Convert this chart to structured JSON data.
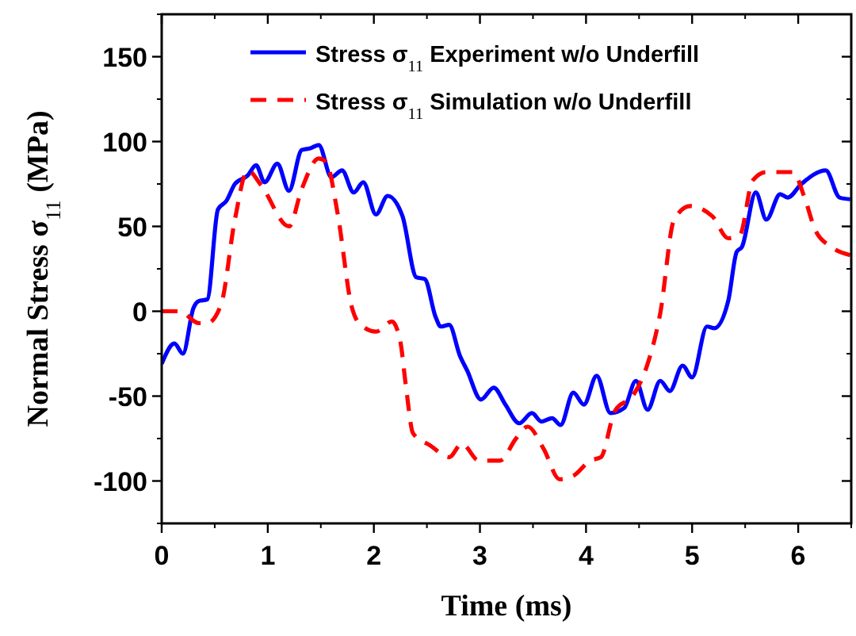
{
  "chart_data": {
    "type": "line",
    "xlabel": "Time (ms)",
    "ylabel": "Normal Stress σ$_{11}$ (MPa)",
    "xlim": [
      0,
      6.5
    ],
    "xticks": [
      0,
      1,
      2,
      3,
      4,
      5,
      6
    ],
    "ylim": [
      -125,
      175
    ],
    "yticks": [
      -100,
      -50,
      0,
      50,
      100,
      150
    ],
    "legend": "top right",
    "grid": false,
    "series": [
      {
        "name": "Stress σ$_{11}$ Experiment w/o Underfill",
        "color": "#0000ff",
        "line_style": "solid",
        "x": [
          0,
          0.12,
          0.2,
          0.3,
          0.35,
          0.43,
          0.53,
          0.61,
          0.69,
          0.81,
          0.89,
          0.97,
          1.09,
          1.2,
          1.32,
          1.4,
          1.48,
          1.6,
          1.7,
          1.81,
          1.9,
          2.02,
          2.13,
          2.27,
          2.4,
          2.48,
          2.58,
          2.63,
          2.71,
          2.81,
          2.88,
          3.01,
          3.13,
          3.24,
          3.37,
          3.49,
          3.58,
          3.68,
          3.76,
          3.88,
          3.98,
          4.1,
          4.23,
          4.36,
          4.47,
          4.58,
          4.7,
          4.79,
          4.91,
          5,
          5.14,
          5.21,
          5.34,
          5.42,
          5.47,
          5.6,
          5.7,
          5.83,
          5.9,
          6.03,
          6.26,
          6.39,
          6.49
        ],
        "values": [
          -31,
          -19,
          -25,
          2,
          6,
          7,
          60,
          65,
          75,
          80,
          86,
          76,
          87,
          71,
          95,
          96,
          98,
          79,
          83,
          70,
          76,
          57,
          68,
          56,
          20,
          19,
          -3,
          -9,
          -8,
          -26,
          -35,
          -52,
          -45,
          -55,
          -66,
          -60,
          -65,
          -63,
          -67,
          -48,
          -55,
          -38,
          -60,
          -57,
          -41,
          -58,
          -41,
          -47,
          -32,
          -39,
          -9,
          -10,
          6,
          35,
          38,
          70,
          54,
          69,
          67,
          75,
          83,
          67,
          66
        ]
      },
      {
        "name": "Stress σ$_{11}$ Simulation w/o Underfill",
        "color": "#ff0000",
        "line_style": "dashed",
        "x": [
          0,
          0.17,
          0.35,
          0.43,
          0.56,
          0.69,
          0.81,
          0.94,
          1.2,
          1.32,
          1.48,
          1.55,
          1.66,
          1.79,
          1.86,
          2.02,
          2.17,
          2.25,
          2.3,
          2.37,
          2.53,
          2.71,
          2.83,
          2.99,
          3.19,
          3.34,
          3.45,
          3.6,
          3.75,
          3.88,
          4.04,
          4.14,
          4.27,
          4.45,
          4.57,
          4.7,
          4.83,
          4.98,
          5.19,
          5.34,
          5.45,
          5.57,
          5.7,
          5.95,
          6.06,
          6.16,
          6.31,
          6.49
        ],
        "values": [
          0,
          0,
          -7,
          -7,
          4,
          54,
          83,
          74,
          50,
          72,
          90,
          88,
          57,
          3,
          -7,
          -12,
          -6,
          -18,
          -43,
          -72,
          -79,
          -86,
          -78,
          -88,
          -88,
          -75,
          -68,
          -81,
          -99,
          -97,
          -88,
          -86,
          -59,
          -49,
          -33,
          -1,
          54,
          62,
          56,
          43,
          45,
          77,
          82,
          82,
          67,
          48,
          38,
          33
        ]
      }
    ]
  }
}
